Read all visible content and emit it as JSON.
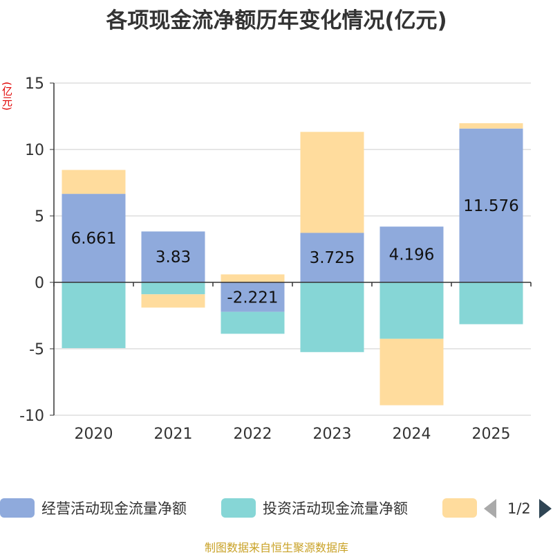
{
  "title": "各项现金流净额历年变化情况(亿元)",
  "unit_label": "(亿元)",
  "source": "制图数据来自恒生聚源数据库",
  "legend": {
    "items": [
      {
        "label": "经营活动现金流量净额",
        "color": "#8faadc"
      },
      {
        "label": "投资活动现金流量净额",
        "color": "#86d6d6"
      },
      {
        "label": "",
        "color": "#ffdc9d"
      }
    ],
    "page": "1/2"
  },
  "chart_data": {
    "type": "bar",
    "stacked": true,
    "categories": [
      "2020",
      "2021",
      "2022",
      "2023",
      "2024",
      "2025"
    ],
    "series": [
      {
        "name": "经营活动现金流量净额",
        "color": "#8faadc",
        "values": [
          6.661,
          3.83,
          -2.221,
          3.725,
          4.196,
          11.576
        ],
        "labels": [
          "6.661",
          "3.83",
          "-2.221",
          "3.725",
          "4.196",
          "11.576"
        ]
      },
      {
        "name": "投资活动现金流量净额",
        "color": "#86d6d6",
        "values": [
          -4.95,
          -0.9,
          -1.65,
          -5.25,
          -4.25,
          -3.15
        ]
      },
      {
        "name": "",
        "color": "#ffdc9d",
        "values": [
          1.8,
          -1.0,
          0.6,
          7.6,
          -5.0,
          0.4
        ]
      }
    ],
    "ylim": [
      -10,
      15
    ],
    "yticks": [
      15,
      10,
      5,
      0,
      -5,
      -10
    ],
    "ylabel": "(亿元)",
    "grid": true
  }
}
